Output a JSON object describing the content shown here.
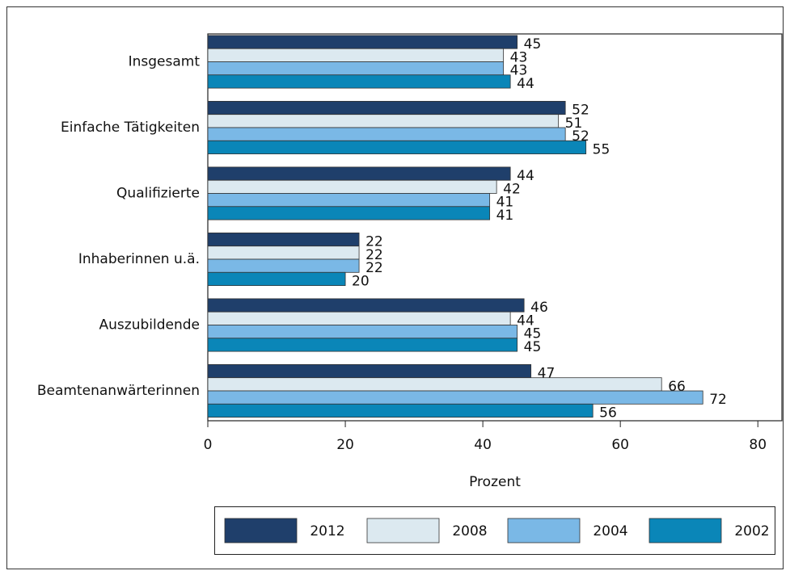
{
  "chart_data": {
    "type": "hbar",
    "categories": [
      "Insgesamt",
      "Einfache Tätigkeiten",
      "Qualifizierte",
      "Inhaberinnen u.ä.",
      "Auszubildende",
      "Beamtenanwärterinnen"
    ],
    "series": [
      {
        "name": "2012",
        "color": "#1f3f6b",
        "values": [
          45,
          52,
          44,
          22,
          46,
          47
        ]
      },
      {
        "name": "2008",
        "color": "#dce9f0",
        "values": [
          43,
          51,
          42,
          22,
          44,
          66
        ]
      },
      {
        "name": "2004",
        "color": "#7ab8e6",
        "values": [
          43,
          52,
          41,
          22,
          45,
          72
        ]
      },
      {
        "name": "2002",
        "color": "#0a86b8",
        "values": [
          44,
          55,
          41,
          20,
          45,
          56
        ]
      }
    ],
    "x_label": "Prozent",
    "xlim": [
      0,
      83.5
    ],
    "xticks": [
      0,
      20,
      40,
      60,
      80
    ],
    "legend": "bottom"
  }
}
